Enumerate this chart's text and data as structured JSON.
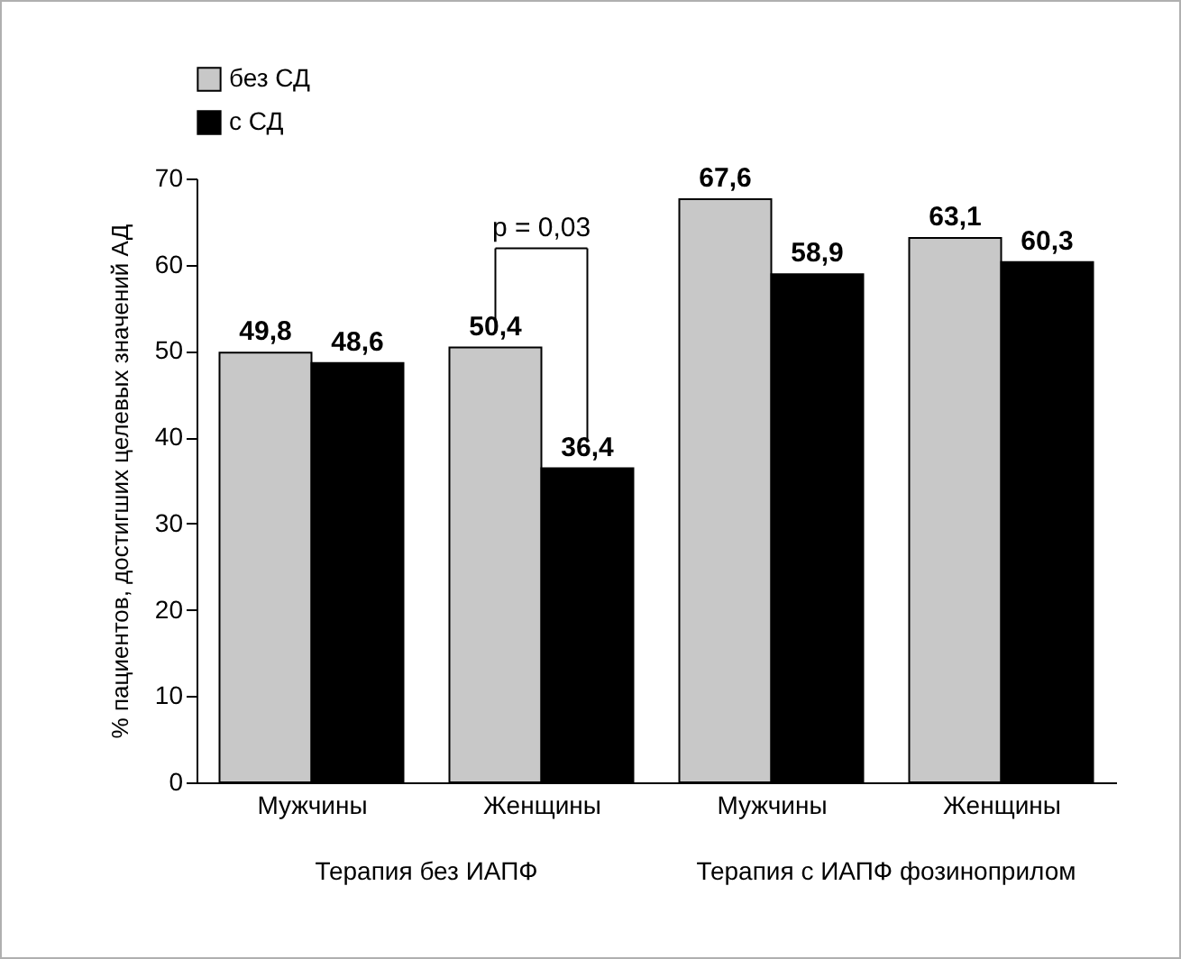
{
  "chart_data": {
    "type": "bar",
    "ylabel": "% пациентов, достигших целевых значений АД",
    "categories": [
      "Мужчины",
      "Женщины",
      "Мужчины",
      "Женщины"
    ],
    "series": [
      {
        "name": "без СД",
        "color": "#c8c8c8",
        "values": [
          49.8,
          50.4,
          67.6,
          63.1
        ],
        "value_labels": [
          "49,8",
          "50,4",
          "67,6",
          "63,1"
        ]
      },
      {
        "name": "с СД",
        "color": "#000000",
        "values": [
          48.6,
          36.4,
          58.9,
          60.3
        ],
        "value_labels": [
          "48,6",
          "36,4",
          "58,9",
          "60,3"
        ]
      }
    ],
    "ylim": [
      0,
      70
    ],
    "yticks": [
      0,
      10,
      20,
      30,
      40,
      50,
      60,
      70
    ],
    "grid": false,
    "legend": "top left",
    "annotations": [
      "p = 0,03",
      "Терапия без ИАПФ",
      "Терапия с ИАПФ фозиноприлом"
    ]
  }
}
